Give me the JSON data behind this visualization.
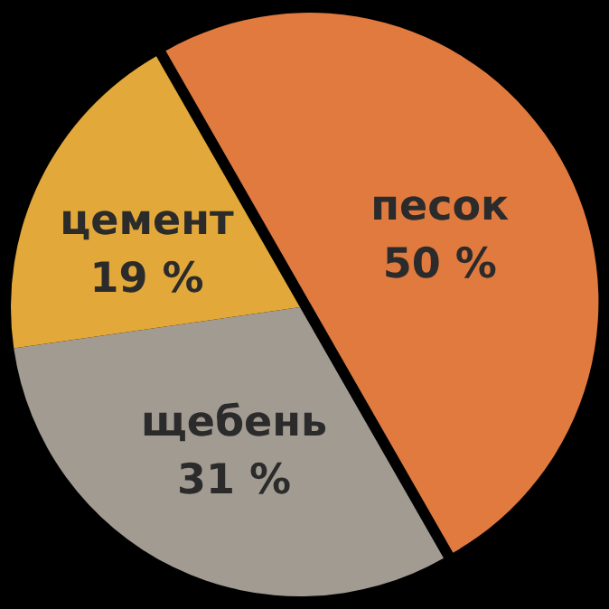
{
  "chart_data": {
    "type": "pie",
    "categories": [
      "песок",
      "щебень",
      "цемент"
    ],
    "values": [
      50,
      31,
      19
    ],
    "colors": [
      "#e07a3f",
      "#a19b92",
      "#e2a83a"
    ],
    "value_labels": [
      "50 %",
      "31 %",
      "19 %"
    ]
  }
}
